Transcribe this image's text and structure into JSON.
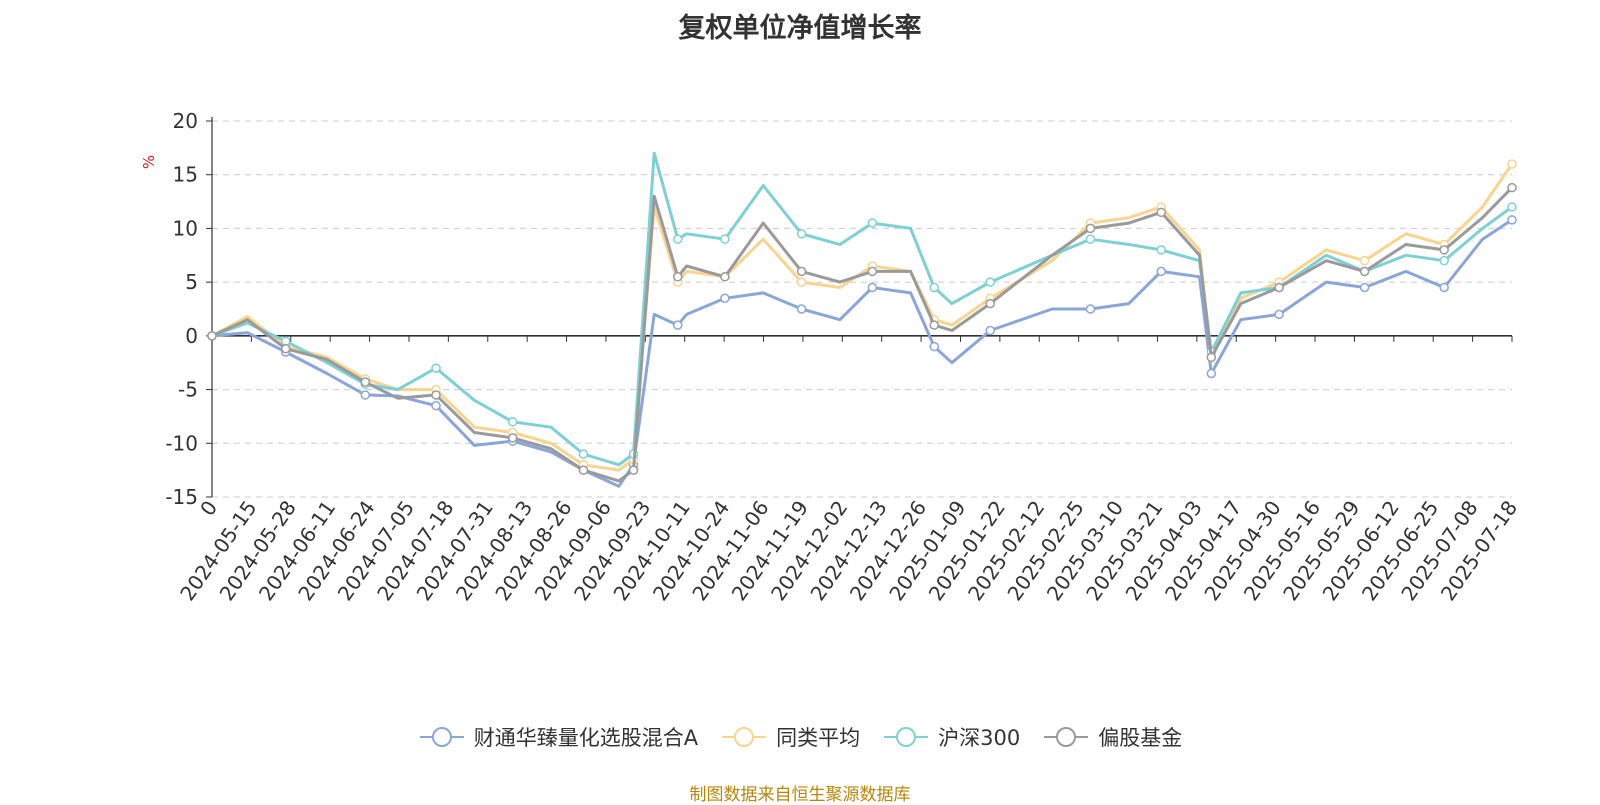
{
  "colors": {
    "series": [
      "#8aa6d9",
      "#f8d48e",
      "#7dd0d3",
      "#9a9a9a"
    ],
    "unit": "#e02020",
    "source": "#b8860b"
  },
  "source_note": "制图数据来自恒生聚源数据库",
  "chart_data": {
    "type": "line",
    "title": "复权单位净值增长率",
    "ylabel": "%",
    "ylim": [
      -15,
      20
    ],
    "yticks": [
      20,
      15,
      10,
      5,
      0,
      -5,
      -10,
      -15
    ],
    "grid": true,
    "legend_position": "bottom",
    "x_tick_labels": [
      "0",
      "2024-05-15",
      "2024-05-28",
      "2024-06-11",
      "2024-06-24",
      "2024-07-05",
      "2024-07-18",
      "2024-07-31",
      "2024-08-13",
      "2024-08-26",
      "2024-09-06",
      "2024-09-23",
      "2024-10-11",
      "2024-10-24",
      "2024-11-06",
      "2024-11-19",
      "2024-12-02",
      "2024-12-13",
      "2024-12-26",
      "2025-01-09",
      "2025-01-22",
      "2025-02-12",
      "2025-02-25",
      "2025-03-10",
      "2025-03-21",
      "2025-04-03",
      "2025-04-17",
      "2025-04-30",
      "2025-05-16",
      "2025-05-29",
      "2025-06-12",
      "2025-06-25",
      "2025-07-08",
      "2025-07-18"
    ],
    "x": [
      "0",
      "2024-05-15",
      "2024-05-28",
      "2024-06-11",
      "2024-06-24",
      "2024-07-05",
      "2024-07-18",
      "2024-07-31",
      "2024-08-13",
      "2024-08-26",
      "2024-09-06",
      "2024-09-18",
      "2024-09-23",
      "2024-09-30",
      "2024-10-08",
      "2024-10-11",
      "2024-10-24",
      "2024-11-06",
      "2024-11-19",
      "2024-12-02",
      "2024-12-13",
      "2024-12-26",
      "2025-01-03",
      "2025-01-09",
      "2025-01-22",
      "2025-02-12",
      "2025-02-25",
      "2025-03-10",
      "2025-03-21",
      "2025-04-03",
      "2025-04-07",
      "2025-04-17",
      "2025-04-30",
      "2025-05-16",
      "2025-05-29",
      "2025-06-12",
      "2025-06-25",
      "2025-07-08",
      "2025-07-18"
    ],
    "series": [
      {
        "name": "财通华臻量化选股混合A",
        "values": [
          0,
          0.3,
          -1.5,
          -3.5,
          -5.5,
          -5.6,
          -6.5,
          -10.2,
          -9.8,
          -10.8,
          -12.5,
          -14.0,
          -12.0,
          2.0,
          1.0,
          2.0,
          3.5,
          4.0,
          2.5,
          1.5,
          4.5,
          4.0,
          -1.0,
          -2.5,
          0.5,
          2.5,
          2.5,
          3.0,
          6.0,
          5.5,
          -3.5,
          1.5,
          2.0,
          5.0,
          4.5,
          6.0,
          4.5,
          9.0,
          10.8
        ]
      },
      {
        "name": "同类平均",
        "values": [
          0,
          1.8,
          -1.0,
          -2.0,
          -4.0,
          -5.0,
          -5.0,
          -8.5,
          -9.0,
          -10.0,
          -12.0,
          -12.5,
          -11.5,
          12.0,
          5.0,
          6.0,
          5.5,
          9.0,
          5.0,
          4.5,
          6.5,
          6.0,
          1.5,
          1.0,
          3.5,
          7.0,
          10.5,
          11.0,
          12.0,
          8.0,
          -2.0,
          3.5,
          5.0,
          8.0,
          7.0,
          9.5,
          8.5,
          12.0,
          16.0
        ]
      },
      {
        "name": "沪深300",
        "values": [
          0,
          1.2,
          -0.5,
          -2.5,
          -4.5,
          -5.0,
          -3.0,
          -6.0,
          -8.0,
          -8.5,
          -11.0,
          -12.0,
          -11.0,
          17.0,
          9.0,
          9.5,
          9.0,
          14.0,
          9.5,
          8.5,
          10.5,
          10.0,
          4.5,
          3.0,
          5.0,
          7.5,
          9.0,
          8.5,
          8.0,
          7.0,
          -1.5,
          4.0,
          4.5,
          7.5,
          6.0,
          7.5,
          7.0,
          10.0,
          12.0
        ]
      },
      {
        "name": "偏股基金",
        "values": [
          0,
          1.5,
          -1.2,
          -2.2,
          -4.3,
          -5.8,
          -5.5,
          -9.0,
          -9.5,
          -10.5,
          -12.5,
          -13.5,
          -12.5,
          13.0,
          5.5,
          6.5,
          5.5,
          10.5,
          6.0,
          5.0,
          6.0,
          6.0,
          1.0,
          0.5,
          3.0,
          7.5,
          10.0,
          10.5,
          11.5,
          7.5,
          -2.0,
          3.0,
          4.5,
          7.0,
          6.0,
          8.5,
          8.0,
          11.0,
          13.8
        ]
      }
    ]
  }
}
